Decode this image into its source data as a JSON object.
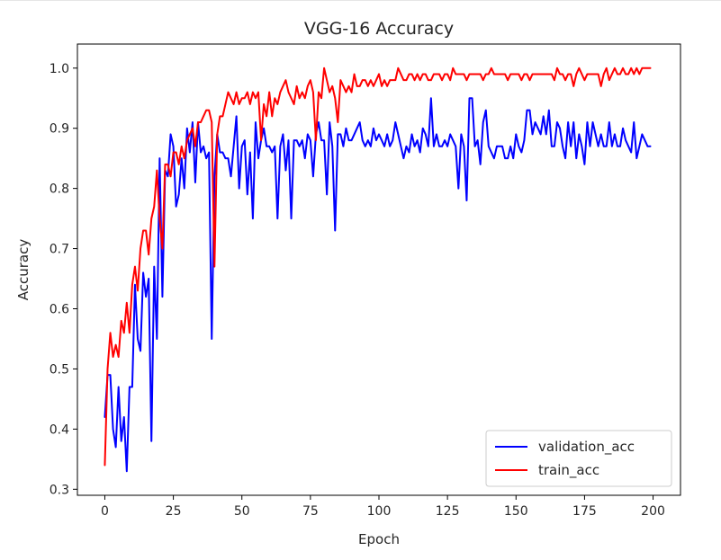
{
  "chart_data": {
    "type": "line",
    "title": "VGG-16 Accuracy",
    "xlabel": "Epoch",
    "ylabel": "Accuracy",
    "xlim": [
      -10,
      210
    ],
    "ylim": [
      0.29,
      1.04
    ],
    "xticks": [
      0,
      25,
      50,
      75,
      100,
      125,
      150,
      175,
      200
    ],
    "xtick_labels": [
      "0",
      "25",
      "50",
      "75",
      "100",
      "125",
      "150",
      "175",
      "200"
    ],
    "yticks": [
      0.3,
      0.4,
      0.5,
      0.6,
      0.7,
      0.8,
      0.9,
      1.0
    ],
    "ytick_labels": [
      "0.3",
      "0.4",
      "0.5",
      "0.6",
      "0.7",
      "0.8",
      "0.9",
      "1.0"
    ],
    "grid": false,
    "legend_position": "lower-right",
    "series": [
      {
        "name": "validation_acc",
        "color": "#0000ff",
        "x": [
          0,
          1,
          2,
          3,
          4,
          5,
          6,
          7,
          8,
          9,
          10,
          11,
          12,
          13,
          14,
          15,
          16,
          17,
          18,
          19,
          20,
          21,
          22,
          23,
          24,
          25,
          26,
          27,
          28,
          29,
          30,
          31,
          32,
          33,
          34,
          35,
          36,
          37,
          38,
          39,
          40,
          41,
          42,
          43,
          44,
          45,
          46,
          47,
          48,
          49,
          50,
          51,
          52,
          53,
          54,
          55,
          56,
          57,
          58,
          59,
          60,
          61,
          62,
          63,
          64,
          65,
          66,
          67,
          68,
          69,
          70,
          71,
          72,
          73,
          74,
          75,
          76,
          77,
          78,
          79,
          80,
          81,
          82,
          83,
          84,
          85,
          86,
          87,
          88,
          89,
          90,
          91,
          92,
          93,
          94,
          95,
          96,
          97,
          98,
          99,
          100,
          101,
          102,
          103,
          104,
          105,
          106,
          107,
          108,
          109,
          110,
          111,
          112,
          113,
          114,
          115,
          116,
          117,
          118,
          119,
          120,
          121,
          122,
          123,
          124,
          125,
          126,
          127,
          128,
          129,
          130,
          131,
          132,
          133,
          134,
          135,
          136,
          137,
          138,
          139,
          140,
          141,
          142,
          143,
          144,
          145,
          146,
          147,
          148,
          149,
          150,
          151,
          152,
          153,
          154,
          155,
          156,
          157,
          158,
          159,
          160,
          161,
          162,
          163,
          164,
          165,
          166,
          167,
          168,
          169,
          170,
          171,
          172,
          173,
          174,
          175,
          176,
          177,
          178,
          179,
          180,
          181,
          182,
          183,
          184,
          185,
          186,
          187,
          188,
          189,
          190,
          191,
          192,
          193,
          194,
          195,
          196,
          197,
          198,
          199
        ],
        "values": [
          0.42,
          0.49,
          0.49,
          0.4,
          0.37,
          0.47,
          0.38,
          0.42,
          0.33,
          0.47,
          0.47,
          0.64,
          0.55,
          0.53,
          0.66,
          0.62,
          0.65,
          0.38,
          0.67,
          0.55,
          0.85,
          0.62,
          0.83,
          0.82,
          0.89,
          0.87,
          0.77,
          0.79,
          0.85,
          0.8,
          0.9,
          0.86,
          0.91,
          0.81,
          0.91,
          0.86,
          0.87,
          0.85,
          0.86,
          0.55,
          0.82,
          0.89,
          0.86,
          0.86,
          0.85,
          0.85,
          0.82,
          0.87,
          0.92,
          0.8,
          0.87,
          0.88,
          0.79,
          0.86,
          0.75,
          0.91,
          0.85,
          0.88,
          0.9,
          0.87,
          0.87,
          0.86,
          0.87,
          0.75,
          0.87,
          0.89,
          0.83,
          0.88,
          0.75,
          0.88,
          0.88,
          0.87,
          0.88,
          0.85,
          0.89,
          0.88,
          0.82,
          0.89,
          0.91,
          0.88,
          0.88,
          0.79,
          0.91,
          0.87,
          0.73,
          0.89,
          0.89,
          0.87,
          0.9,
          0.88,
          0.88,
          0.89,
          0.9,
          0.91,
          0.88,
          0.87,
          0.88,
          0.87,
          0.9,
          0.88,
          0.89,
          0.88,
          0.87,
          0.89,
          0.87,
          0.88,
          0.91,
          0.89,
          0.87,
          0.85,
          0.87,
          0.86,
          0.89,
          0.87,
          0.88,
          0.86,
          0.9,
          0.89,
          0.87,
          0.95,
          0.87,
          0.89,
          0.87,
          0.87,
          0.88,
          0.87,
          0.89,
          0.88,
          0.87,
          0.8,
          0.89,
          0.87,
          0.78,
          0.95,
          0.95,
          0.87,
          0.88,
          0.84,
          0.91,
          0.93,
          0.87,
          0.86,
          0.85,
          0.87,
          0.87,
          0.87,
          0.85,
          0.85,
          0.87,
          0.85,
          0.89,
          0.87,
          0.86,
          0.88,
          0.93,
          0.93,
          0.89,
          0.91,
          0.9,
          0.89,
          0.92,
          0.89,
          0.93,
          0.87,
          0.87,
          0.91,
          0.9,
          0.87,
          0.85,
          0.91,
          0.87,
          0.91,
          0.85,
          0.89,
          0.87,
          0.84,
          0.91,
          0.87,
          0.91,
          0.89,
          0.87,
          0.89,
          0.87,
          0.87,
          0.91,
          0.87,
          0.89,
          0.87,
          0.87,
          0.9,
          0.88,
          0.87,
          0.86,
          0.91,
          0.85,
          0.87,
          0.89,
          0.88,
          0.87,
          0.87
        ]
      },
      {
        "name": "train_acc",
        "color": "#ff0000",
        "x": [
          0,
          1,
          2,
          3,
          4,
          5,
          6,
          7,
          8,
          9,
          10,
          11,
          12,
          13,
          14,
          15,
          16,
          17,
          18,
          19,
          20,
          21,
          22,
          23,
          24,
          25,
          26,
          27,
          28,
          29,
          30,
          31,
          32,
          33,
          34,
          35,
          36,
          37,
          38,
          39,
          40,
          41,
          42,
          43,
          44,
          45,
          46,
          47,
          48,
          49,
          50,
          51,
          52,
          53,
          54,
          55,
          56,
          57,
          58,
          59,
          60,
          61,
          62,
          63,
          64,
          65,
          66,
          67,
          68,
          69,
          70,
          71,
          72,
          73,
          74,
          75,
          76,
          77,
          78,
          79,
          80,
          81,
          82,
          83,
          84,
          85,
          86,
          87,
          88,
          89,
          90,
          91,
          92,
          93,
          94,
          95,
          96,
          97,
          98,
          99,
          100,
          101,
          102,
          103,
          104,
          105,
          106,
          107,
          108,
          109,
          110,
          111,
          112,
          113,
          114,
          115,
          116,
          117,
          118,
          119,
          120,
          121,
          122,
          123,
          124,
          125,
          126,
          127,
          128,
          129,
          130,
          131,
          132,
          133,
          134,
          135,
          136,
          137,
          138,
          139,
          140,
          141,
          142,
          143,
          144,
          145,
          146,
          147,
          148,
          149,
          150,
          151,
          152,
          153,
          154,
          155,
          156,
          157,
          158,
          159,
          160,
          161,
          162,
          163,
          164,
          165,
          166,
          167,
          168,
          169,
          170,
          171,
          172,
          173,
          174,
          175,
          176,
          177,
          178,
          179,
          180,
          181,
          182,
          183,
          184,
          185,
          186,
          187,
          188,
          189,
          190,
          191,
          192,
          193,
          194,
          195,
          196,
          197,
          198,
          199
        ],
        "values": [
          0.34,
          0.5,
          0.56,
          0.52,
          0.54,
          0.52,
          0.58,
          0.56,
          0.61,
          0.56,
          0.64,
          0.67,
          0.63,
          0.7,
          0.73,
          0.73,
          0.69,
          0.75,
          0.77,
          0.83,
          0.75,
          0.7,
          0.84,
          0.84,
          0.82,
          0.86,
          0.86,
          0.84,
          0.87,
          0.85,
          0.88,
          0.89,
          0.9,
          0.87,
          0.91,
          0.91,
          0.92,
          0.93,
          0.93,
          0.91,
          0.67,
          0.89,
          0.92,
          0.92,
          0.94,
          0.96,
          0.95,
          0.94,
          0.96,
          0.94,
          0.95,
          0.95,
          0.96,
          0.94,
          0.96,
          0.95,
          0.96,
          0.88,
          0.94,
          0.92,
          0.96,
          0.92,
          0.95,
          0.94,
          0.96,
          0.97,
          0.98,
          0.96,
          0.95,
          0.94,
          0.97,
          0.95,
          0.96,
          0.95,
          0.97,
          0.98,
          0.96,
          0.88,
          0.96,
          0.95,
          1.0,
          0.98,
          0.96,
          0.97,
          0.95,
          0.91,
          0.98,
          0.97,
          0.96,
          0.97,
          0.96,
          0.99,
          0.97,
          0.97,
          0.98,
          0.98,
          0.97,
          0.98,
          0.97,
          0.98,
          0.99,
          0.97,
          0.98,
          0.97,
          0.98,
          0.98,
          0.98,
          1.0,
          0.99,
          0.98,
          0.98,
          0.99,
          0.99,
          0.98,
          0.99,
          0.98,
          0.99,
          0.99,
          0.98,
          0.98,
          0.99,
          0.99,
          0.99,
          0.98,
          0.99,
          0.99,
          0.98,
          1.0,
          0.99,
          0.99,
          0.99,
          0.99,
          0.98,
          0.99,
          0.99,
          0.99,
          0.99,
          0.99,
          0.98,
          0.99,
          0.99,
          1.0,
          0.99,
          0.99,
          0.99,
          0.99,
          0.99,
          0.98,
          0.99,
          0.99,
          0.99,
          0.99,
          0.98,
          0.99,
          0.99,
          0.98,
          0.99,
          0.99,
          0.99,
          0.99,
          0.99,
          0.99,
          0.99,
          0.99,
          0.98,
          1.0,
          0.99,
          0.99,
          0.98,
          0.99,
          0.99,
          0.97,
          0.99,
          1.0,
          0.99,
          0.98,
          0.99,
          0.99,
          0.99,
          0.99,
          0.99,
          0.97,
          0.99,
          1.0,
          0.98,
          0.99,
          1.0,
          0.99,
          0.99,
          1.0,
          0.99,
          0.99,
          1.0,
          0.99,
          1.0,
          0.99,
          1.0,
          1.0,
          1.0,
          1.0
        ]
      }
    ]
  }
}
